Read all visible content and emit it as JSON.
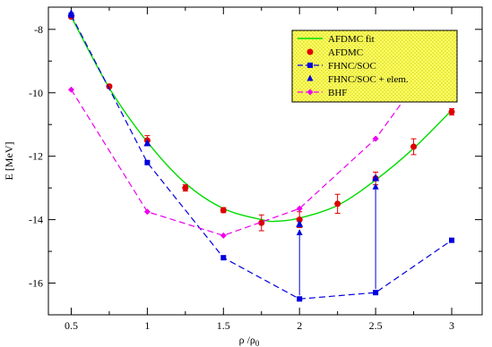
{
  "chart_data": {
    "type": "line",
    "xlabel": "ρ /ρ",
    "xlabel_sub": "0",
    "ylabel": "E [MeV]",
    "xlim": [
      0.35,
      3.2
    ],
    "ylim": [
      -17.0,
      -7.3
    ],
    "x_ticks": [
      0.5,
      1,
      1.5,
      2,
      2.5,
      3
    ],
    "x_tick_labels": [
      "0.5",
      "1",
      "1.5",
      "2",
      "2.5",
      "3"
    ],
    "y_ticks": [
      -8,
      -10,
      -12,
      -14,
      -16
    ],
    "y_tick_labels": [
      "-8",
      "-10",
      "-12",
      "-14",
      "-16"
    ],
    "grid": false,
    "legend_position": "top-right",
    "legend_background": "#ffff88",
    "series": [
      {
        "name": "AFDMC fit",
        "style": "curve",
        "color": "#00dd00",
        "x": [
          0.5,
          0.75,
          1.0,
          1.25,
          1.5,
          1.75,
          1.85,
          2.0,
          2.25,
          2.5,
          2.75,
          3.0
        ],
        "y": [
          -7.6,
          -9.85,
          -11.55,
          -12.85,
          -13.65,
          -14.0,
          -14.05,
          -13.95,
          -13.55,
          -12.75,
          -11.75,
          -10.55
        ]
      },
      {
        "name": "AFDMC",
        "style": "markers-errorbars",
        "marker": "circle",
        "color": "#dd0000",
        "x": [
          0.5,
          0.75,
          1.0,
          1.25,
          1.5,
          1.75,
          2.0,
          2.25,
          2.5,
          2.75,
          3.0
        ],
        "y": [
          -7.6,
          -9.8,
          -11.5,
          -13.0,
          -13.7,
          -14.1,
          -14.0,
          -13.5,
          -12.7,
          -11.7,
          -10.6
        ],
        "err": [
          0.05,
          0.05,
          0.15,
          0.1,
          0.08,
          0.25,
          0.25,
          0.3,
          0.2,
          0.25,
          0.1
        ]
      },
      {
        "name": "FHNC/SOC",
        "style": "dashed-squares",
        "marker": "square",
        "color": "#0000dd",
        "x": [
          0.5,
          1.0,
          1.5,
          2.0,
          2.5,
          3.0
        ],
        "y": [
          -7.55,
          -12.2,
          -15.2,
          -16.5,
          -16.3,
          -14.65
        ]
      },
      {
        "name": "FHNC/SOC + elem.",
        "style": "markers",
        "marker": "triangle",
        "color": "#0000dd",
        "x": [
          0.5,
          1.0,
          2.0,
          2.5
        ],
        "y": [
          -7.5,
          -11.6,
          -14.15,
          -12.7
        ]
      },
      {
        "name": "BHF",
        "style": "dashed-diamonds",
        "marker": "diamond",
        "color": "#ee00ee",
        "x": [
          0.5,
          1.0,
          1.5,
          2.0,
          2.5,
          3.0
        ],
        "y": [
          -9.9,
          -13.75,
          -14.5,
          -13.65,
          -11.45,
          -8.15
        ]
      }
    ],
    "annotations": [
      {
        "type": "arrow",
        "x": 2.0,
        "y_from": -16.5,
        "y_to": -14.15,
        "color": "#0000dd"
      },
      {
        "type": "arrow",
        "x": 2.5,
        "y_from": -16.3,
        "y_to": -12.7,
        "color": "#0000dd"
      }
    ]
  }
}
